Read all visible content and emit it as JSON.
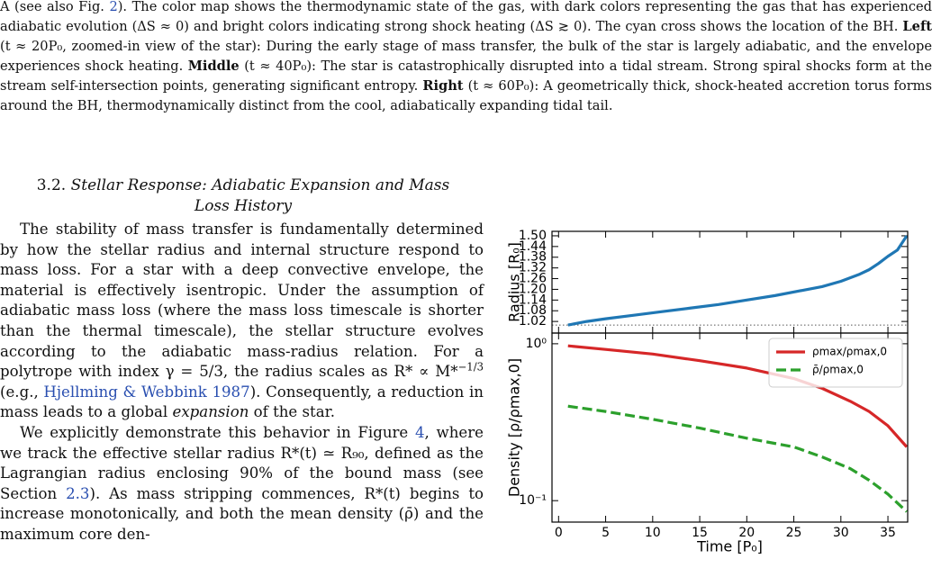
{
  "caption": [
    {
      "text": "A (see also Fig. "
    },
    {
      "text": "2",
      "style": "link"
    },
    {
      "text": "). The color map shows the thermodynamic state of the gas, with dark colors representing the gas that has experienced adiabatic evolution (ΔS ≈ 0) and bright colors indicating strong shock heating (ΔS ≳ 0). The cyan cross shows the location of the BH. "
    },
    {
      "text": "Left",
      "style": "bold"
    },
    {
      "text": " (t ≈ 20P₀, zoomed-in view of the star): During the early stage of mass transfer, the bulk of the star is largely adiabatic, and the envelope experiences shock heating. "
    },
    {
      "text": "Middle",
      "style": "bold"
    },
    {
      "text": " (t ≈ 40P₀): The star is catastrophically disrupted into a tidal stream. Strong spiral shocks form at the stream self-intersection points, generating significant entropy. "
    },
    {
      "text": "Right",
      "style": "bold"
    },
    {
      "text": " (t ≈ 60P₀): A geometrically thick, shock-heated accretion torus forms around the BH, thermodynamically distinct from the cool, adiabatically expanding tidal tail."
    }
  ],
  "section": {
    "number": "3.2.",
    "title": "Stellar Response: Adiabatic Expansion and Mass Loss History"
  },
  "paragraphs": [
    [
      {
        "text": "The stability of mass transfer is fundamentally determined by how the stellar radius and internal structure respond to mass loss. For a star with a deep convective envelope, the material is effectively isentropic. Under the assumption of adiabatic mass loss (where the mass loss timescale is shorter than the thermal timescale), the stellar structure evolves according to the adiabatic mass-radius relation. For a polytrope with index γ = 5/3, the radius scales as R* ∝ M*"
      },
      {
        "text": "−1/3",
        "style": "sup"
      },
      {
        "text": " (e.g., "
      },
      {
        "text": "Hjellming & Webbink 1987",
        "style": "link"
      },
      {
        "text": "). Consequently, a reduction in mass leads to a global "
      },
      {
        "text": "expansion",
        "style": "italic"
      },
      {
        "text": " of the star."
      }
    ],
    [
      {
        "text": "We explicitly demonstrate this behavior in Figure "
      },
      {
        "text": "4",
        "style": "link"
      },
      {
        "text": ", where we track the effective stellar radius R*(t) ≃ R₉₀, defined as the Lagrangian radius enclosing 90% of the bound mass (see Section "
      },
      {
        "text": "2.3",
        "style": "link"
      },
      {
        "text": "). As mass stripping commences, R*(t) begins to increase monotonically, and both the mean density (ρ̄) and the maximum core den-"
      }
    ]
  ],
  "chart_data": [
    {
      "type": "line",
      "ylabel": "Radius [R₀]",
      "x": [
        1,
        3,
        5,
        8,
        11,
        14,
        17,
        20,
        23,
        26,
        28,
        30,
        32,
        33,
        34,
        35,
        36,
        37
      ],
      "series": [
        {
          "color": "#1f77b4",
          "values": [
            1.0,
            1.02,
            1.035,
            1.055,
            1.075,
            1.095,
            1.115,
            1.14,
            1.165,
            1.195,
            1.215,
            1.245,
            1.285,
            1.31,
            1.345,
            1.385,
            1.42,
            1.5
          ]
        }
      ],
      "ylim": [
        0.955,
        1.525
      ],
      "yticks": [
        1.02,
        1.08,
        1.14,
        {
          "value": 1.2,
          "label": "1.20"
        },
        1.26,
        1.32,
        1.38,
        1.44,
        {
          "value": 1.5,
          "label": "1.50"
        }
      ],
      "hline": 1.0
    },
    {
      "type": "line",
      "xlabel": "Time [P₀]",
      "ylabel": "Density [ρ/ρmax,0]",
      "log_y": true,
      "xlim": [
        -0.7,
        37.1
      ],
      "xticks": [
        0,
        5,
        10,
        15,
        20,
        25,
        30,
        35
      ],
      "x": [
        1,
        5,
        10,
        15,
        20,
        25,
        28,
        31,
        33,
        35,
        37
      ],
      "series": [
        {
          "name": "ρmax/ρmax,0",
          "color": "#d62728",
          "style": "solid",
          "values": [
            0.97,
            0.92,
            0.86,
            0.78,
            0.7,
            0.6,
            0.52,
            0.43,
            0.37,
            0.3,
            0.22
          ]
        },
        {
          "name": "ρ̄/ρmax,0",
          "color": "#2ca02c",
          "style": "dashed",
          "values": [
            0.4,
            0.37,
            0.33,
            0.29,
            0.25,
            0.22,
            0.19,
            0.16,
            0.135,
            0.11,
            0.085
          ]
        }
      ],
      "ylim": [
        0.073,
        1.17
      ],
      "yticks": [
        {
          "value": 1,
          "label": "10⁰"
        },
        {
          "value": 0.1,
          "label": "10⁻¹"
        }
      ],
      "legend": "upper right"
    }
  ]
}
